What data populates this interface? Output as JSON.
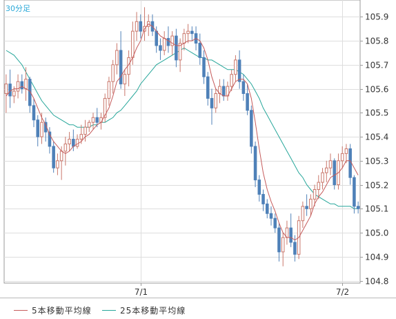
{
  "chart_data": {
    "type": "candlestick",
    "label": "30分足",
    "yticks": [
      104.8,
      104.9,
      105.0,
      105.1,
      105.2,
      105.3,
      105.4,
      105.5,
      105.6,
      105.7,
      105.8,
      105.9
    ],
    "ylim": [
      104.79,
      105.97
    ],
    "xticks": [
      {
        "label": "7/1",
        "at": 34
      },
      {
        "label": "7/2",
        "at": 85
      }
    ],
    "grid": true,
    "up_color": "#c9766a",
    "down_color": "#4f81b8",
    "legend_position": "bottom",
    "series": [
      {
        "name": "5本移動平均線",
        "color": "#c55a5a"
      },
      {
        "name": "25本移動平均線",
        "color": "#26a69a"
      }
    ],
    "ohlc": [
      [
        105.58,
        105.66,
        105.5,
        105.62
      ],
      [
        105.62,
        105.68,
        105.52,
        105.57
      ],
      [
        105.57,
        105.61,
        105.54,
        105.59
      ],
      [
        105.59,
        105.66,
        105.56,
        105.63
      ],
      [
        105.63,
        105.66,
        105.58,
        105.6
      ],
      [
        105.6,
        105.69,
        105.55,
        105.64
      ],
      [
        105.64,
        105.65,
        105.5,
        105.53
      ],
      [
        105.53,
        105.56,
        105.44,
        105.47
      ],
      [
        105.47,
        105.49,
        105.36,
        105.4
      ],
      [
        105.4,
        105.5,
        105.37,
        105.46
      ],
      [
        105.46,
        105.48,
        105.38,
        105.42
      ],
      [
        105.42,
        105.44,
        105.33,
        105.36
      ],
      [
        105.36,
        105.38,
        105.25,
        105.27
      ],
      [
        105.27,
        105.33,
        105.24,
        105.3
      ],
      [
        105.3,
        105.36,
        105.22,
        105.34
      ],
      [
        105.34,
        105.4,
        105.28,
        105.37
      ],
      [
        105.37,
        105.42,
        105.34,
        105.39
      ],
      [
        105.39,
        105.43,
        105.34,
        105.36
      ],
      [
        105.36,
        105.41,
        105.35,
        105.39
      ],
      [
        105.39,
        105.45,
        105.37,
        105.41
      ],
      [
        105.41,
        105.47,
        105.38,
        105.44
      ],
      [
        105.44,
        105.47,
        105.42,
        105.46
      ],
      [
        105.46,
        105.5,
        105.43,
        105.48
      ],
      [
        105.48,
        105.52,
        105.44,
        105.46
      ],
      [
        105.46,
        105.5,
        105.43,
        105.48
      ],
      [
        105.48,
        105.58,
        105.46,
        105.56
      ],
      [
        105.56,
        105.65,
        105.53,
        105.63
      ],
      [
        105.63,
        105.72,
        105.58,
        105.7
      ],
      [
        105.7,
        105.79,
        105.66,
        105.76
      ],
      [
        105.76,
        105.84,
        105.6,
        105.62
      ],
      [
        105.62,
        105.68,
        105.57,
        105.66
      ],
      [
        105.66,
        105.76,
        105.61,
        105.73
      ],
      [
        105.73,
        105.88,
        105.7,
        105.84
      ],
      [
        105.84,
        105.92,
        105.8,
        105.88
      ],
      [
        105.88,
        105.91,
        105.81,
        105.84
      ],
      [
        105.84,
        105.94,
        105.8,
        105.86
      ],
      [
        105.86,
        105.91,
        105.82,
        105.88
      ],
      [
        105.88,
        105.91,
        105.82,
        105.84
      ],
      [
        105.84,
        105.86,
        105.75,
        105.78
      ],
      [
        105.78,
        105.81,
        105.72,
        105.76
      ],
      [
        105.76,
        105.84,
        105.74,
        105.81
      ],
      [
        105.81,
        105.86,
        105.75,
        105.78
      ],
      [
        105.78,
        105.84,
        105.74,
        105.82
      ],
      [
        105.82,
        105.85,
        105.69,
        105.72
      ],
      [
        105.72,
        105.81,
        105.67,
        105.79
      ],
      [
        105.79,
        105.85,
        105.76,
        105.83
      ],
      [
        105.83,
        105.87,
        105.79,
        105.84
      ],
      [
        105.84,
        105.86,
        105.8,
        105.83
      ],
      [
        105.83,
        105.86,
        105.76,
        105.79
      ],
      [
        105.79,
        105.83,
        105.7,
        105.73
      ],
      [
        105.73,
        105.76,
        105.62,
        105.65
      ],
      [
        105.65,
        105.67,
        105.53,
        105.56
      ],
      [
        105.56,
        105.6,
        105.45,
        105.52
      ],
      [
        105.52,
        105.6,
        105.5,
        105.58
      ],
      [
        105.58,
        105.64,
        105.54,
        105.61
      ],
      [
        105.61,
        105.64,
        105.55,
        105.57
      ],
      [
        105.57,
        105.63,
        105.55,
        105.61
      ],
      [
        105.61,
        105.68,
        105.59,
        105.66
      ],
      [
        105.66,
        105.74,
        105.63,
        105.72
      ],
      [
        105.72,
        105.76,
        105.6,
        105.63
      ],
      [
        105.63,
        105.66,
        105.55,
        105.58
      ],
      [
        105.58,
        105.62,
        105.49,
        105.51
      ],
      [
        105.51,
        105.53,
        105.33,
        105.36
      ],
      [
        105.36,
        105.38,
        105.19,
        105.22
      ],
      [
        105.22,
        105.24,
        105.13,
        105.16
      ],
      [
        105.16,
        105.18,
        105.09,
        105.12
      ],
      [
        105.12,
        105.14,
        105.06,
        105.08
      ],
      [
        105.08,
        105.11,
        105.03,
        105.06
      ],
      [
        105.06,
        105.08,
        105.0,
        105.02
      ],
      [
        105.02,
        105.04,
        104.88,
        104.92
      ],
      [
        104.92,
        105.0,
        104.86,
        104.98
      ],
      [
        104.98,
        105.05,
        104.95,
        105.02
      ],
      [
        105.02,
        105.08,
        104.94,
        104.96
      ],
      [
        104.96,
        104.99,
        104.88,
        104.91
      ],
      [
        104.91,
        105.07,
        104.89,
        105.05
      ],
      [
        105.05,
        105.13,
        105.02,
        105.11
      ],
      [
        105.11,
        105.16,
        105.07,
        105.1
      ],
      [
        105.1,
        105.16,
        105.07,
        105.14
      ],
      [
        105.14,
        105.2,
        105.11,
        105.18
      ],
      [
        105.18,
        105.24,
        105.14,
        105.21
      ],
      [
        105.21,
        105.27,
        105.18,
        105.25
      ],
      [
        105.25,
        105.3,
        105.21,
        105.27
      ],
      [
        105.27,
        105.33,
        105.24,
        105.3
      ],
      [
        105.3,
        105.31,
        105.18,
        105.2
      ],
      [
        105.2,
        105.33,
        105.18,
        105.3
      ],
      [
        105.3,
        105.36,
        105.27,
        105.33
      ],
      [
        105.33,
        105.37,
        105.29,
        105.35
      ],
      [
        105.35,
        105.37,
        105.2,
        105.23
      ],
      [
        105.23,
        105.24,
        105.08,
        105.11
      ],
      [
        105.11,
        105.13,
        105.08,
        105.1
      ]
    ],
    "ma5": [
      105.57,
      105.59,
      105.6,
      105.6,
      105.61,
      105.6,
      105.59,
      105.56,
      105.52,
      105.48,
      105.45,
      105.41,
      105.38,
      105.36,
      105.34,
      105.33,
      105.34,
      105.36,
      105.37,
      105.38,
      105.4,
      105.41,
      105.43,
      105.45,
      105.46,
      105.49,
      105.52,
      105.57,
      105.63,
      105.65,
      105.68,
      105.7,
      105.73,
      105.77,
      105.8,
      105.85,
      105.87,
      105.86,
      105.84,
      105.82,
      105.81,
      105.8,
      105.79,
      105.78,
      105.78,
      105.79,
      105.8,
      105.8,
      105.81,
      105.8,
      105.77,
      105.72,
      105.65,
      105.6,
      105.58,
      105.57,
      105.57,
      105.6,
      105.63,
      105.64,
      105.64,
      105.62,
      105.56,
      105.46,
      105.35,
      105.25,
      105.18,
      105.13,
      105.09,
      105.04,
      105.0,
      104.98,
      104.98,
      104.97,
      104.98,
      105.01,
      105.04,
      105.07,
      105.12,
      105.15,
      105.17,
      105.2,
      105.23,
      105.24,
      105.25,
      105.27,
      105.3,
      105.3,
      105.27,
      105.24
    ],
    "ma25": [
      105.76,
      105.75,
      105.74,
      105.72,
      105.7,
      105.67,
      105.64,
      105.61,
      105.58,
      105.55,
      105.53,
      105.51,
      105.49,
      105.48,
      105.47,
      105.46,
      105.45,
      105.45,
      105.44,
      105.44,
      105.44,
      105.44,
      105.45,
      105.45,
      105.46,
      105.46,
      105.47,
      105.48,
      105.5,
      105.51,
      105.53,
      105.55,
      105.57,
      105.59,
      105.62,
      105.64,
      105.66,
      105.68,
      105.7,
      105.71,
      105.72,
      105.73,
      105.74,
      105.75,
      105.76,
      105.77,
      105.76,
      105.75,
      105.74,
      105.73,
      105.73,
      105.72,
      105.72,
      105.71,
      105.7,
      105.69,
      105.68,
      105.68,
      105.68,
      105.67,
      105.66,
      105.64,
      105.62,
      105.59,
      105.56,
      105.52,
      105.49,
      105.46,
      105.43,
      105.4,
      105.37,
      105.34,
      105.31,
      105.28,
      105.25,
      105.23,
      105.2,
      105.18,
      105.16,
      105.15,
      105.14,
      105.13,
      105.12,
      105.12,
      105.11,
      105.11,
      105.11,
      105.11,
      105.1,
      105.1
    ]
  }
}
